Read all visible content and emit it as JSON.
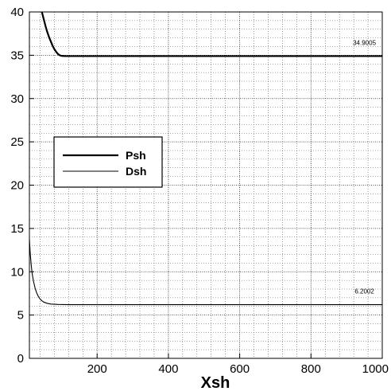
{
  "chart_data": {
    "type": "line",
    "title": "",
    "xlabel": "Xsh",
    "ylabel": "",
    "xlim": [
      10,
      1000
    ],
    "ylim": [
      0,
      40
    ],
    "x_ticks": [
      200,
      400,
      600,
      800,
      1000
    ],
    "y_ticks": [
      0,
      5,
      10,
      15,
      20,
      25,
      30,
      35,
      40
    ],
    "grid": true,
    "legend": "center-left",
    "series": [
      {
        "name": "Psh",
        "color": "#000000",
        "points": [
          [
            45,
            40
          ],
          [
            50,
            39.2
          ],
          [
            55,
            38.4
          ],
          [
            60,
            37.7
          ],
          [
            65,
            37.1
          ],
          [
            70,
            36.6
          ],
          [
            75,
            36.1
          ],
          [
            80,
            35.7
          ],
          [
            85,
            35.4
          ],
          [
            90,
            35.15
          ],
          [
            95,
            35.0
          ],
          [
            100,
            34.93
          ],
          [
            110,
            34.905
          ],
          [
            150,
            34.9005
          ],
          [
            400,
            34.9005
          ],
          [
            1000,
            34.9005
          ]
        ]
      },
      {
        "name": "Dsh",
        "color": "#000000",
        "points": [
          [
            10,
            13.8
          ],
          [
            12,
            12.3
          ],
          [
            15,
            10.8
          ],
          [
            18,
            9.7
          ],
          [
            22,
            8.8
          ],
          [
            26,
            8.1
          ],
          [
            30,
            7.6
          ],
          [
            35,
            7.15
          ],
          [
            40,
            6.85
          ],
          [
            45,
            6.65
          ],
          [
            50,
            6.5
          ],
          [
            60,
            6.35
          ],
          [
            70,
            6.27
          ],
          [
            90,
            6.22
          ],
          [
            120,
            6.2
          ],
          [
            200,
            6.2002
          ],
          [
            1000,
            6.2002
          ]
        ]
      }
    ],
    "annotations": [
      {
        "text": "34.9005",
        "x": 950,
        "y": 34.9005
      },
      {
        "text": "6.2002",
        "x": 950,
        "y": 6.2002
      }
    ]
  }
}
